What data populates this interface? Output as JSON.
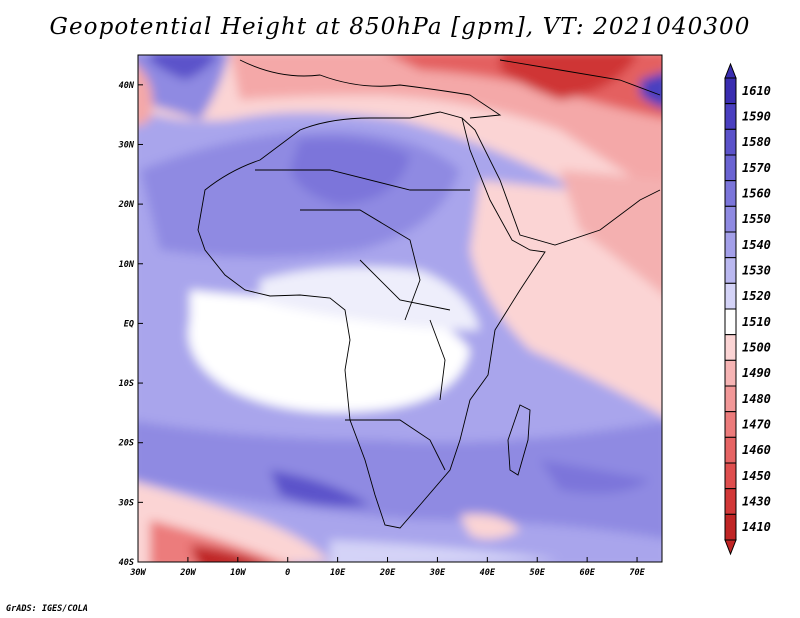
{
  "title": "Geopotential Height at 850hPa [gpm], VT: 2021040300",
  "credit": "GrADS: IGES/COLA",
  "map": {
    "lon_range": [
      -30,
      75
    ],
    "lat_range": [
      -40,
      45
    ],
    "lon_ticks": [
      {
        "value": -30,
        "label": "30W"
      },
      {
        "value": -20,
        "label": "20W"
      },
      {
        "value": -10,
        "label": "10W"
      },
      {
        "value": 0,
        "label": "0"
      },
      {
        "value": 10,
        "label": "10E"
      },
      {
        "value": 20,
        "label": "20E"
      },
      {
        "value": 30,
        "label": "30E"
      },
      {
        "value": 40,
        "label": "40E"
      },
      {
        "value": 50,
        "label": "50E"
      },
      {
        "value": 60,
        "label": "60E"
      },
      {
        "value": 70,
        "label": "70E"
      }
    ],
    "lat_ticks": [
      {
        "value": 40,
        "label": "40N"
      },
      {
        "value": 30,
        "label": "30N"
      },
      {
        "value": 20,
        "label": "20N"
      },
      {
        "value": 10,
        "label": "10N"
      },
      {
        "value": 0,
        "label": "EQ"
      },
      {
        "value": -10,
        "label": "10S"
      },
      {
        "value": -20,
        "label": "20S"
      },
      {
        "value": -30,
        "label": "30S"
      },
      {
        "value": -40,
        "label": "40S"
      }
    ]
  },
  "colorbar": {
    "levels": [
      {
        "label": "1610",
        "color": "#3a2db0"
      },
      {
        "label": "1590",
        "color": "#4a3fc0"
      },
      {
        "label": "1580",
        "color": "#5b52ca"
      },
      {
        "label": "1570",
        "color": "#6a63d2"
      },
      {
        "label": "1560",
        "color": "#7b75da"
      },
      {
        "label": "1550",
        "color": "#8f8ae2"
      },
      {
        "label": "1540",
        "color": "#a39fe9"
      },
      {
        "label": "1530",
        "color": "#bab8f0"
      },
      {
        "label": "1520",
        "color": "#d4d3f7"
      },
      {
        "label": "1510",
        "color": "#ffffff"
      },
      {
        "label": "1500",
        "color": "#fbd4d4"
      },
      {
        "label": "1490",
        "color": "#f6b4b4"
      },
      {
        "label": "1480",
        "color": "#f29898"
      },
      {
        "label": "1470",
        "color": "#ec7b7b"
      },
      {
        "label": "1460",
        "color": "#e66464"
      },
      {
        "label": "1450",
        "color": "#df4e4e"
      },
      {
        "label": "1430",
        "color": "#d23838"
      },
      {
        "label": "1410",
        "color": "#c02525"
      }
    ]
  }
}
